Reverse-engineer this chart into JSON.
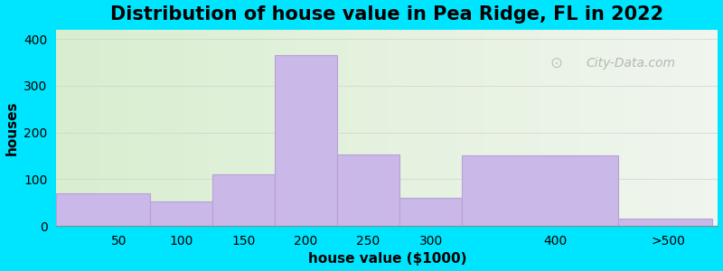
{
  "title": "Distribution of house value in Pea Ridge, FL in 2022",
  "xlabel": "house value ($1000)",
  "ylabel": "houses",
  "bar_lefts": [
    0,
    75,
    125,
    175,
    225,
    275,
    325,
    450
  ],
  "bar_widths": [
    75,
    50,
    50,
    50,
    50,
    50,
    125,
    75
  ],
  "bar_heights": [
    70,
    52,
    110,
    365,
    152,
    60,
    150,
    15
  ],
  "bar_color": "#c9b8e8",
  "bar_edgecolor": "#b8a0d8",
  "background_outer": "#00e5ff",
  "ylim": [
    0,
    420
  ],
  "xlim": [
    0,
    530
  ],
  "yticks": [
    0,
    100,
    200,
    300,
    400
  ],
  "xtick_positions": [
    50,
    100,
    150,
    200,
    250,
    300,
    400
  ],
  "xtick_labels": [
    "50",
    "100",
    "150",
    "200",
    "250",
    "300",
    "400"
  ],
  "xtick_extra_pos": 490,
  "xtick_extra_label": ">500",
  "title_fontsize": 15,
  "axis_label_fontsize": 11,
  "tick_fontsize": 10,
  "watermark_text": "City-Data.com",
  "grid_color": "#cccccc",
  "bg_left_color": "#d8eecf",
  "bg_right_color": "#f0f5ee"
}
